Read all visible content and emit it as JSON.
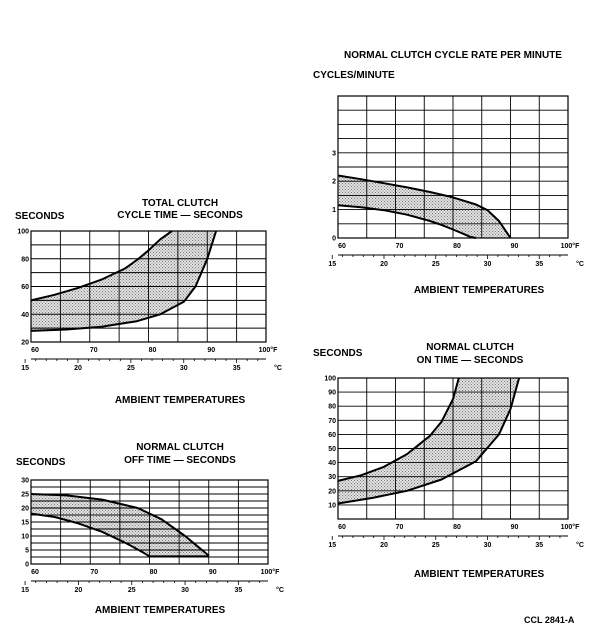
{
  "figure_id": "CCL 2841-A",
  "chart_data": [
    {
      "id": "total",
      "type": "area",
      "title_lines": [
        "TOTAL CLUTCH",
        "CYCLE TIME — SECONDS"
      ],
      "ylabel": "SECONDS",
      "xlabel": "AMBIENT TEMPERATURES",
      "x_unit_f": "°F",
      "x_unit_c": "°C",
      "xlim": [
        60,
        100
      ],
      "ylim": [
        20,
        100
      ],
      "x_grid_step": 5,
      "y_grid_step": 10,
      "f_ticks": [
        60,
        70,
        80,
        90,
        100
      ],
      "c_ticks": [
        15,
        20,
        25,
        30,
        35
      ],
      "y_ticks": [
        20,
        40,
        60,
        80,
        100
      ],
      "grid": true,
      "series": [
        {
          "x": [
            60,
            64,
            68,
            72,
            76,
            78,
            80,
            82,
            84
          ],
          "y": [
            50,
            54,
            59,
            65,
            73,
            79,
            86,
            94,
            100
          ]
        },
        {
          "x": [
            60,
            66,
            72,
            78,
            82,
            86,
            88,
            90,
            91.5
          ],
          "y": [
            28,
            29,
            31,
            35,
            40,
            49,
            60,
            80,
            100
          ]
        }
      ]
    },
    {
      "id": "offtime",
      "type": "area",
      "title_lines": [
        "NORMAL CLUTCH",
        "OFF TIME — SECONDS"
      ],
      "ylabel": "SECONDS",
      "xlabel": "AMBIENT TEMPERATURES",
      "x_unit_f": "°F",
      "x_unit_c": "°C",
      "xlim": [
        60,
        100
      ],
      "ylim": [
        0,
        30
      ],
      "x_grid_step": 5,
      "y_grid_step": 2.5,
      "f_ticks": [
        60,
        70,
        80,
        90,
        100
      ],
      "c_ticks": [
        15,
        20,
        25,
        30,
        35
      ],
      "y_ticks": [
        0,
        5,
        10,
        15,
        20,
        25,
        30
      ],
      "grid": true,
      "series": [
        {
          "x": [
            60,
            66,
            72,
            78,
            82,
            86,
            88,
            90
          ],
          "y": [
            25,
            24.5,
            23,
            20,
            16,
            10,
            6.5,
            3
          ]
        },
        {
          "x": [
            60,
            64,
            68,
            72,
            76,
            79,
            80,
            90
          ],
          "y": [
            18,
            16.8,
            14.5,
            11.5,
            7.5,
            4,
            2.7,
            2.7
          ]
        }
      ]
    },
    {
      "id": "cyclerate",
      "type": "area",
      "title_lines": [
        "NORMAL CLUTCH CYCLE RATE PER MINUTE"
      ],
      "ylabel": "CYCLES/MINUTE",
      "xlabel": "AMBIENT TEMPERATURES",
      "x_unit_f": "°F",
      "x_unit_c": "°C",
      "xlim": [
        60,
        100
      ],
      "ylim": [
        0,
        5
      ],
      "x_grid_step": 5,
      "y_grid_step": 0.5,
      "f_ticks": [
        60,
        70,
        80,
        90,
        100
      ],
      "c_ticks": [
        15,
        20,
        25,
        30,
        35
      ],
      "y_ticks": [
        0,
        1,
        2,
        3
      ],
      "grid": true,
      "series": [
        {
          "x": [
            60,
            64,
            68,
            72,
            76,
            80,
            84,
            86,
            88,
            90
          ],
          "y": [
            2.2,
            2.07,
            1.93,
            1.78,
            1.62,
            1.43,
            1.18,
            0.98,
            0.6,
            0
          ]
        },
        {
          "x": [
            60,
            64,
            68,
            72,
            76,
            78,
            80,
            82,
            83,
            84
          ],
          "y": [
            1.15,
            1.08,
            0.98,
            0.82,
            0.6,
            0.46,
            0.3,
            0.13,
            0.04,
            0
          ]
        }
      ]
    },
    {
      "id": "ontime",
      "type": "area",
      "title_lines": [
        "NORMAL CLUTCH",
        "ON TIME — SECONDS"
      ],
      "ylabel": "SECONDS",
      "xlabel": "AMBIENT TEMPERATURES",
      "x_unit_f": "°F",
      "x_unit_c": "°C",
      "xlim": [
        60,
        100
      ],
      "ylim": [
        0,
        100
      ],
      "x_grid_step": 5,
      "y_grid_step": 10,
      "f_ticks": [
        60,
        70,
        80,
        90,
        100
      ],
      "c_ticks": [
        15,
        20,
        25,
        30,
        35
      ],
      "y_ticks": [
        10,
        20,
        30,
        40,
        50,
        60,
        70,
        80,
        90,
        100
      ],
      "grid": true,
      "series": [
        {
          "x": [
            60,
            64,
            68,
            72,
            76,
            78,
            80,
            81
          ],
          "y": [
            27,
            31,
            37,
            46,
            59,
            69,
            85,
            100
          ]
        },
        {
          "x": [
            60,
            66,
            72,
            78,
            84,
            88,
            90,
            91.5
          ],
          "y": [
            11,
            15,
            20,
            28,
            41,
            60,
            78,
            100
          ]
        }
      ]
    }
  ]
}
